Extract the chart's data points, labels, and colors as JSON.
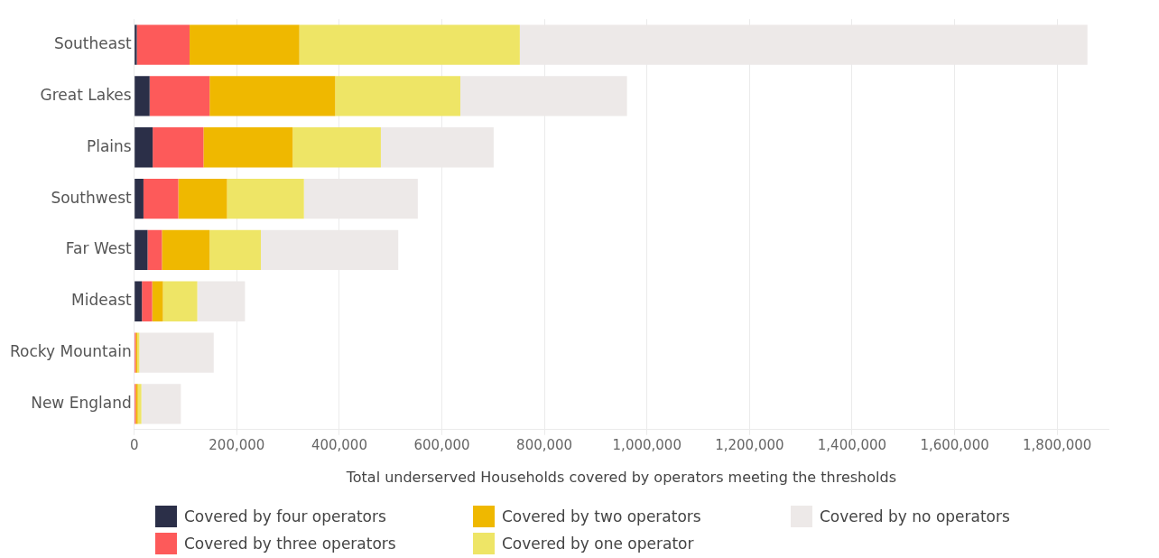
{
  "chart_data": {
    "type": "bar",
    "orientation": "horizontal",
    "stacked": true,
    "xlabel": "Total underserved Households covered by operators meeting the thresholds",
    "categories": [
      "Southeast",
      "Great Lakes",
      "Plains",
      "Southwest",
      "Far West",
      "Mideast",
      "Rocky Mountain",
      "New England"
    ],
    "series": [
      {
        "name": "Covered by four operators",
        "color": "#2b2f48",
        "values": [
          5000,
          30000,
          36000,
          18000,
          26000,
          15000,
          null,
          null
        ]
      },
      {
        "name": "Covered by three operators",
        "color": "#fd5a5a",
        "values": [
          103000,
          117000,
          99000,
          68000,
          28000,
          20000,
          3000,
          3000
        ]
      },
      {
        "name": "Covered by two operators",
        "color": "#efb800",
        "values": [
          214000,
          245000,
          174000,
          95000,
          93000,
          21000,
          3000,
          4000
        ]
      },
      {
        "name": "Covered by one operator",
        "color": "#eee566",
        "values": [
          430000,
          244000,
          172000,
          150000,
          100000,
          67000,
          4000,
          7000
        ]
      },
      {
        "name": "Covered by no operators",
        "color": "#ede9e8",
        "values": [
          1107000,
          325000,
          220000,
          222000,
          268000,
          93000,
          145000,
          77000
        ]
      }
    ],
    "xlim": [
      0,
      1900000
    ],
    "xticks": [
      0,
      {
        "value": 200000,
        "label": "200,000"
      },
      {
        "value": 400000,
        "label": "400,000"
      },
      {
        "value": 600000,
        "label": "600,000"
      },
      {
        "value": 800000,
        "label": "800,000"
      },
      {
        "value": 1000000,
        "label": "1,000,000"
      },
      {
        "value": 1200000,
        "label": "1,200,000"
      },
      {
        "value": 1400000,
        "label": "1,400,000"
      },
      {
        "value": 1600000,
        "label": "1,600,000"
      },
      {
        "value": 1800000,
        "label": "1,800,000"
      }
    ],
    "grid": "x",
    "legend": "bottom"
  }
}
